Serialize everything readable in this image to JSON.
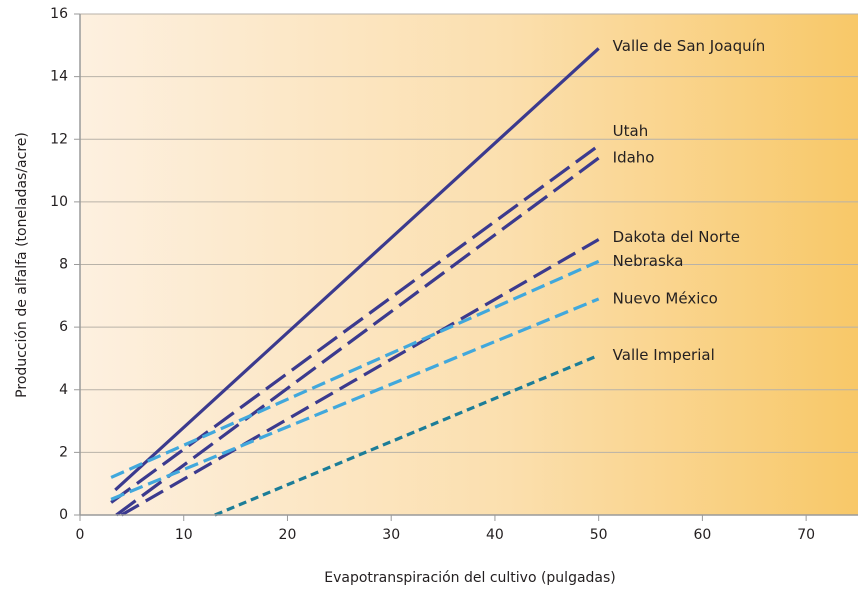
{
  "chart_data": {
    "type": "line",
    "xlabel": "Evapotranspiración del cultivo (pulgadas)",
    "ylabel": "Producción de alfalfa (toneladas/acre)",
    "xlim": [
      0,
      75
    ],
    "ylim": [
      0,
      16
    ],
    "xticks": [
      0,
      10,
      20,
      30,
      40,
      50,
      60,
      70
    ],
    "yticks": [
      0,
      2,
      4,
      6,
      8,
      10,
      12,
      14,
      16
    ],
    "grid": true,
    "series": [
      {
        "name": "Valle de San Joaquín",
        "color": "#3b3a8e",
        "x": [
          3.4,
          50
        ],
        "values": [
          0.8,
          14.9
        ]
      },
      {
        "name": "Utah",
        "color": "#3b3a8e",
        "x": [
          3,
          50
        ],
        "values": [
          0.4,
          11.8
        ]
      },
      {
        "name": "Idaho",
        "color": "#3b3a8e",
        "x": [
          3.5,
          50
        ],
        "values": [
          0,
          11.4
        ]
      },
      {
        "name": "Dakota del Norte",
        "color": "#3b3a8e",
        "x": [
          4,
          50
        ],
        "values": [
          0,
          8.8
        ]
      },
      {
        "name": "Nebraska",
        "color": "#41a8dc",
        "x": [
          3,
          50
        ],
        "values": [
          1.2,
          8.1
        ]
      },
      {
        "name": "Nuevo México",
        "color": "#41a8dc",
        "x": [
          3,
          50
        ],
        "values": [
          0.5,
          6.9
        ]
      },
      {
        "name": "Valle Imperial",
        "color": "#1c7d98",
        "x": [
          13,
          50
        ],
        "values": [
          0,
          5.1
        ]
      }
    ]
  }
}
